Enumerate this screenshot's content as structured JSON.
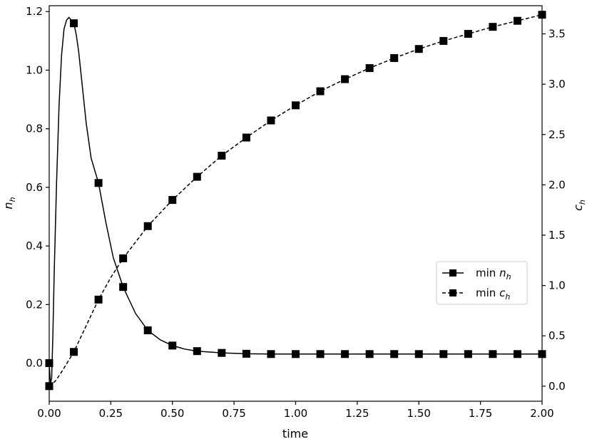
{
  "chart_data": {
    "type": "line",
    "xlabel": "time",
    "ylabel_left": "n",
    "ylabel_left_sub": "h",
    "ylabel_right": "c",
    "ylabel_right_sub": "h",
    "xlim": [
      0,
      2.0
    ],
    "ylim_left": [
      -0.13,
      1.22
    ],
    "ylim_right": [
      -0.15,
      3.78
    ],
    "x_ticks": [
      0.0,
      0.25,
      0.5,
      0.75,
      1.0,
      1.25,
      1.5,
      1.75,
      2.0
    ],
    "x_tick_labels": [
      "0.00",
      "0.25",
      "0.50",
      "0.75",
      "1.00",
      "1.25",
      "1.50",
      "1.75",
      "2.00"
    ],
    "y_left_ticks": [
      0.0,
      0.2,
      0.4,
      0.6,
      0.8,
      1.0,
      1.2
    ],
    "y_left_tick_labels": [
      "0.0",
      "0.2",
      "0.4",
      "0.6",
      "0.8",
      "1.0",
      "1.2"
    ],
    "y_right_ticks": [
      0.0,
      0.5,
      1.0,
      1.5,
      2.0,
      2.5,
      3.0,
      3.5
    ],
    "y_right_tick_labels": [
      "0.0",
      "0.5",
      "1.0",
      "1.5",
      "2.0",
      "2.5",
      "3.0",
      "3.5"
    ],
    "grid": false,
    "legend_position": "center-right",
    "legend": [
      {
        "label": "min ",
        "sub_base": "n",
        "sub": "h",
        "style": "solid",
        "marker": "square"
      },
      {
        "label": "min ",
        "sub_base": "c",
        "sub": "h",
        "style": "dashed",
        "marker": "square"
      }
    ],
    "series": [
      {
        "name": "min n_h",
        "axis": "left",
        "style": "solid",
        "color": "#000000",
        "curve_x": [
          0,
          0.005,
          0.01,
          0.015,
          0.02,
          0.03,
          0.04,
          0.05,
          0.06,
          0.07,
          0.08,
          0.09,
          0.1,
          0.11,
          0.12,
          0.13,
          0.15,
          0.17,
          0.2,
          0.23,
          0.26,
          0.3,
          0.35,
          0.4,
          0.45,
          0.5,
          0.55,
          0.6,
          0.7,
          0.8,
          0.9,
          1.0,
          1.2,
          1.5,
          1.8,
          2.0
        ],
        "curve_y": [
          0.0,
          -0.07,
          -0.05,
          0.1,
          0.3,
          0.62,
          0.88,
          1.05,
          1.14,
          1.17,
          1.18,
          1.17,
          1.16,
          1.12,
          1.06,
          0.98,
          0.82,
          0.7,
          0.615,
          0.48,
          0.36,
          0.26,
          0.17,
          0.112,
          0.08,
          0.06,
          0.048,
          0.041,
          0.035,
          0.032,
          0.031,
          0.031,
          0.031,
          0.031,
          0.031,
          0.031
        ],
        "marker_x": [
          0.0,
          0.1,
          0.2,
          0.3,
          0.4,
          0.5,
          0.6,
          0.7,
          0.8,
          0.9,
          1.0,
          1.1,
          1.2,
          1.3,
          1.4,
          1.5,
          1.6,
          1.7,
          1.8,
          1.9,
          2.0
        ],
        "marker_y": [
          0.0,
          1.16,
          0.615,
          0.26,
          0.112,
          0.06,
          0.041,
          0.035,
          0.032,
          0.031,
          0.031,
          0.031,
          0.031,
          0.031,
          0.031,
          0.031,
          0.031,
          0.031,
          0.031,
          0.031,
          0.031
        ]
      },
      {
        "name": "min c_h",
        "axis": "right",
        "style": "dashed",
        "color": "#000000",
        "curve_x": [
          0.0,
          0.025,
          0.05,
          0.1,
          0.15,
          0.2,
          0.25,
          0.3,
          0.4,
          0.5,
          0.6,
          0.7,
          0.8,
          0.9,
          1.0,
          1.1,
          1.2,
          1.3,
          1.4,
          1.5,
          1.6,
          1.7,
          1.8,
          1.9,
          2.0
        ],
        "curve_y": [
          0.0,
          0.05,
          0.14,
          0.34,
          0.6,
          0.86,
          1.08,
          1.27,
          1.59,
          1.85,
          2.08,
          2.29,
          2.47,
          2.64,
          2.79,
          2.93,
          3.05,
          3.16,
          3.26,
          3.35,
          3.43,
          3.5,
          3.57,
          3.63,
          3.69
        ],
        "marker_x": [
          0.0,
          0.1,
          0.2,
          0.3,
          0.4,
          0.5,
          0.6,
          0.7,
          0.8,
          0.9,
          1.0,
          1.1,
          1.2,
          1.3,
          1.4,
          1.5,
          1.6,
          1.7,
          1.8,
          1.9,
          2.0
        ],
        "marker_y": [
          0.0,
          0.34,
          0.86,
          1.27,
          1.59,
          1.85,
          2.08,
          2.29,
          2.47,
          2.64,
          2.79,
          2.93,
          3.05,
          3.16,
          3.26,
          3.35,
          3.43,
          3.5,
          3.57,
          3.63,
          3.69
        ]
      }
    ]
  }
}
